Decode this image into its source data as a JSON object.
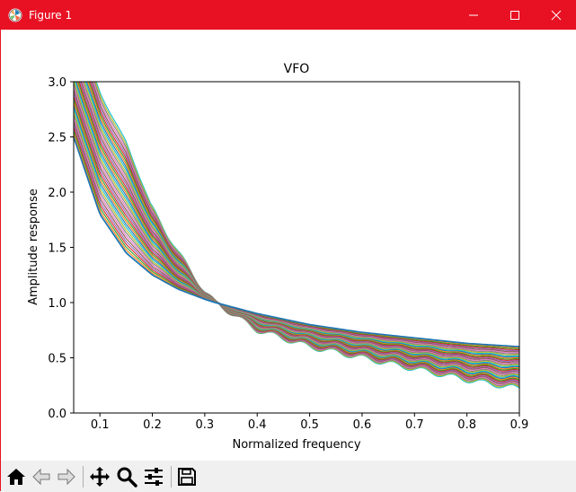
{
  "window": {
    "title": "Figure 1",
    "accent": "#e81123",
    "icons": [
      "matplotlib-icon",
      "minimize-icon",
      "maximize-icon",
      "close-icon"
    ]
  },
  "toolbar": {
    "buttons": [
      "home-icon",
      "back-icon",
      "forward-icon",
      "pan-icon",
      "zoom-icon",
      "configure-subplots-icon",
      "save-icon"
    ]
  },
  "chart_data": {
    "type": "line",
    "title": "VFO",
    "xlabel": "Normalized frequency",
    "ylabel": "Amplitude response",
    "xlim": [
      0.05,
      0.9
    ],
    "ylim": [
      0.0,
      3.0
    ],
    "xticks": [
      "0.1",
      "0.2",
      "0.3",
      "0.4",
      "0.5",
      "0.6",
      "0.7",
      "0.8",
      "0.9"
    ],
    "yticks": [
      "0.0",
      "0.5",
      "1.0",
      "1.5",
      "2.0",
      "2.5",
      "3.0"
    ],
    "grid": false,
    "legend": "none",
    "series_count": 40,
    "x": [
      0.05,
      0.1,
      0.15,
      0.2,
      0.25,
      0.3,
      0.32,
      0.4,
      0.5,
      0.6,
      0.7,
      0.8,
      0.9
    ],
    "series": [
      {
        "values": [
          2.5,
          1.8,
          1.45,
          1.25,
          1.12,
          1.03,
          1.0,
          0.9,
          0.8,
          0.73,
          0.68,
          0.63,
          0.6
        ]
      },
      {
        "values": [
          3.6,
          2.9,
          2.45,
          1.85,
          1.45,
          1.1,
          1.0,
          0.75,
          0.6,
          0.5,
          0.4,
          0.3,
          0.22
        ]
      }
    ],
    "line_colors": [
      "#1f77b4",
      "#ff7f0e",
      "#2ca02c",
      "#d62728",
      "#9467bd",
      "#8c564b",
      "#e377c2",
      "#7f7f7f",
      "#bcbd22",
      "#17becf"
    ]
  }
}
